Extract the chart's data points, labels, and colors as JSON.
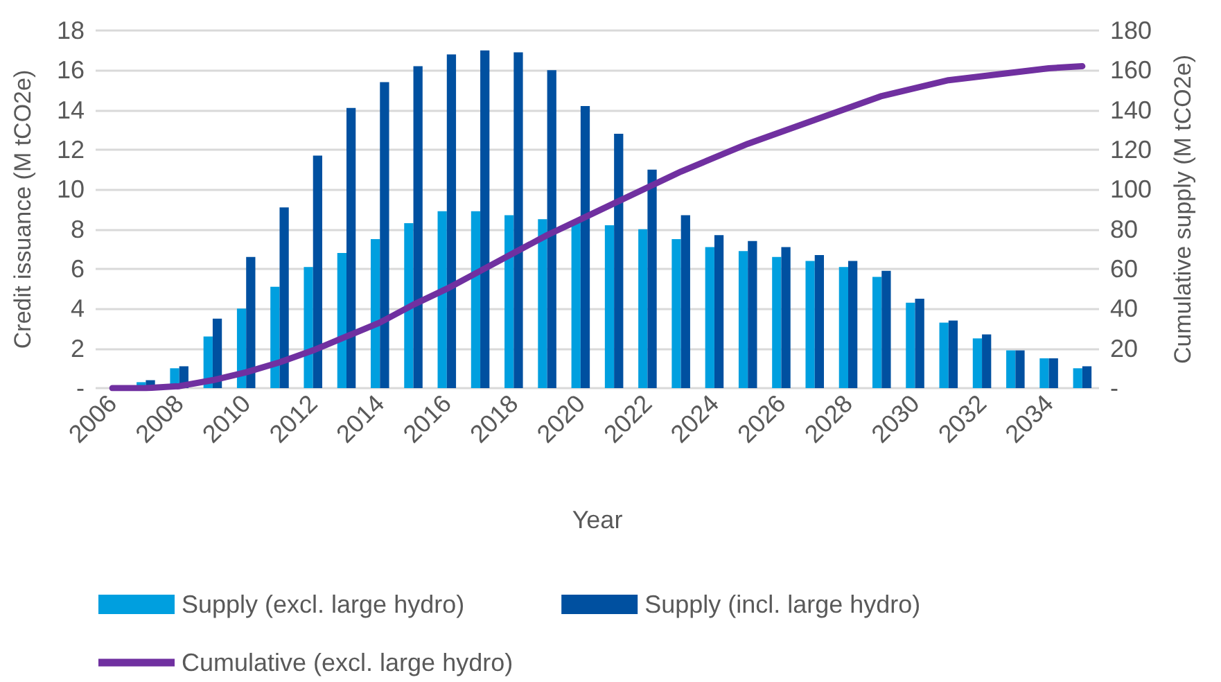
{
  "chart_data": {
    "type": "bar",
    "xlabel": "Year",
    "ylabel": "Credit issuance (M tCO2e)",
    "y2label": "Cumulative supply (M tCO2e)",
    "categories": [
      "2006",
      null,
      "2008",
      null,
      "2010",
      null,
      "2012",
      null,
      "2014",
      null,
      "2016",
      null,
      "2018",
      null,
      "2020",
      null,
      "2022",
      null,
      "2024",
      null,
      "2026",
      null,
      "2028",
      null,
      "2030",
      null,
      "2032",
      null,
      "2034",
      null
    ],
    "series": [
      {
        "name": "Supply (excl. large hydro)",
        "color": "#009fdf",
        "values": [
          0,
          0.3,
          1.0,
          2.6,
          4.0,
          5.1,
          6.1,
          6.8,
          7.5,
          8.3,
          8.9,
          8.9,
          8.7,
          8.5,
          8.4,
          8.2,
          8.0,
          7.5,
          7.1,
          6.9,
          6.6,
          6.4,
          6.1,
          5.6,
          4.3,
          3.3,
          2.5,
          1.9,
          1.5,
          1.0
        ]
      },
      {
        "name": "Supply (incl. large hydro)",
        "color": "#0050a0",
        "values": [
          0,
          0.4,
          1.1,
          3.5,
          6.6,
          9.1,
          11.7,
          14.1,
          15.4,
          16.2,
          16.8,
          17.0,
          16.9,
          16.0,
          14.2,
          12.8,
          11.0,
          8.7,
          7.7,
          7.4,
          7.1,
          6.7,
          6.4,
          5.9,
          4.5,
          3.4,
          2.7,
          1.9,
          1.5,
          1.1
        ]
      },
      {
        "name": "Cumulative (excl. large hydro)",
        "type": "line",
        "axis": "y2",
        "color": "#7030a0",
        "values": [
          0,
          0,
          1,
          4,
          8,
          13,
          19,
          26,
          33,
          42,
          50,
          59,
          68,
          77,
          85,
          93,
          101,
          109,
          116,
          123,
          129,
          135,
          141,
          147,
          151,
          155,
          157,
          159,
          161,
          162
        ]
      }
    ],
    "ylim": [
      0,
      18
    ],
    "yticks": [
      {
        "value": 0,
        "label": "-"
      },
      2,
      4,
      6,
      8,
      10,
      12,
      14,
      16,
      18
    ],
    "y2lim": [
      0,
      180
    ],
    "y2ticks": [
      {
        "value": 0,
        "label": "-"
      },
      20,
      40,
      60,
      80,
      100,
      120,
      140,
      160,
      180
    ],
    "grid": "y",
    "legend": "bottom",
    "marker": "none",
    "line_style": "solid"
  }
}
